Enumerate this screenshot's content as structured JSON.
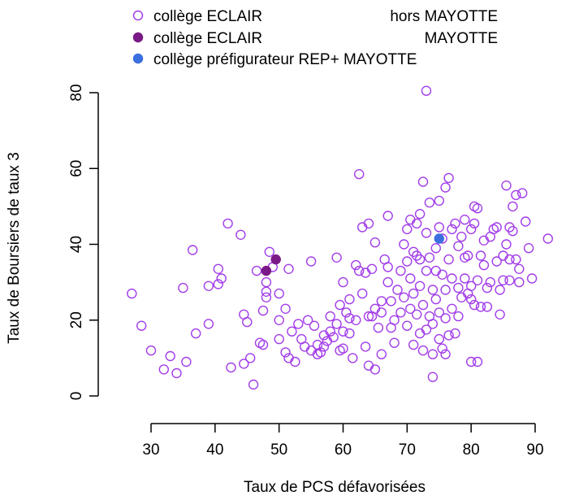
{
  "chart_data": {
    "type": "scatter",
    "title": "",
    "xlabel": "Taux de PCS défavorisées",
    "ylabel": "Taux de Boursiers de taux 3",
    "xlim": [
      25,
      95
    ],
    "ylim": [
      -2,
      84
    ],
    "x_ticks": [
      30,
      40,
      50,
      60,
      70,
      80,
      90
    ],
    "y_ticks": [
      0,
      20,
      40,
      60,
      80
    ],
    "grid": false,
    "legend_position": "top",
    "legend": [
      {
        "label": "collège ECLAIR",
        "suffix": "hors MAYOTTE",
        "marker": "open-circle",
        "color": "#a23de8"
      },
      {
        "label": "collège ECLAIR",
        "suffix": "MAYOTTE",
        "marker": "filled-circle",
        "color": "#7a1a86"
      },
      {
        "label": "collège préfigurateur REP+ MAYOTTE",
        "suffix": "",
        "marker": "filled-circle",
        "color": "#3b6fe0"
      }
    ],
    "series": [
      {
        "name": "collège ECLAIR hors MAYOTTE",
        "marker": "open-circle",
        "color": "#a23de8",
        "points": [
          [
            27,
            27
          ],
          [
            28.5,
            18.5
          ],
          [
            30,
            12
          ],
          [
            32,
            7
          ],
          [
            33,
            10.5
          ],
          [
            34,
            6
          ],
          [
            35,
            28.5
          ],
          [
            35.5,
            9
          ],
          [
            36.5,
            38.5
          ],
          [
            37,
            16.5
          ],
          [
            39,
            19
          ],
          [
            39,
            29
          ],
          [
            40.5,
            29.5
          ],
          [
            40.5,
            33.5
          ],
          [
            41,
            31
          ],
          [
            42,
            45.5
          ],
          [
            42.5,
            7.5
          ],
          [
            44,
            42.5
          ],
          [
            44.5,
            8.5
          ],
          [
            44.5,
            21.5
          ],
          [
            45,
            19.5
          ],
          [
            45.5,
            10
          ],
          [
            46,
            3
          ],
          [
            46.5,
            33
          ],
          [
            47,
            14
          ],
          [
            47.5,
            22.5
          ],
          [
            47.5,
            13.5
          ],
          [
            48,
            26
          ],
          [
            48,
            27.5
          ],
          [
            48,
            30
          ],
          [
            48.5,
            38
          ],
          [
            49,
            34
          ],
          [
            50,
            15
          ],
          [
            50,
            20
          ],
          [
            50,
            27
          ],
          [
            51,
            11.5
          ],
          [
            51,
            23
          ],
          [
            51.5,
            10
          ],
          [
            51.5,
            33.5
          ],
          [
            52,
            17
          ],
          [
            52.5,
            9
          ],
          [
            53,
            19
          ],
          [
            53.5,
            15
          ],
          [
            54,
            13
          ],
          [
            54.5,
            20
          ],
          [
            55,
            12
          ],
          [
            55,
            35.5
          ],
          [
            55.5,
            18.5
          ],
          [
            56,
            13.5
          ],
          [
            56,
            11
          ],
          [
            56.5,
            11.5
          ],
          [
            57,
            13
          ],
          [
            57,
            16
          ],
          [
            57.5,
            14.5
          ],
          [
            58,
            21
          ],
          [
            58,
            17
          ],
          [
            58.5,
            15.5
          ],
          [
            59,
            19
          ],
          [
            59,
            36.5
          ],
          [
            59.5,
            12
          ],
          [
            59.5,
            24
          ],
          [
            60,
            30
          ],
          [
            60,
            17
          ],
          [
            60,
            12.5
          ],
          [
            60.5,
            22
          ],
          [
            61,
            20.5
          ],
          [
            61,
            25.5
          ],
          [
            61,
            16.5
          ],
          [
            61.5,
            10
          ],
          [
            62,
            34.5
          ],
          [
            62,
            20
          ],
          [
            62.5,
            33
          ],
          [
            62.5,
            58.5
          ],
          [
            63,
            44.5
          ],
          [
            63,
            27
          ],
          [
            63.5,
            13
          ],
          [
            63.5,
            32.5
          ],
          [
            64,
            21
          ],
          [
            64,
            45.5
          ],
          [
            64,
            8
          ],
          [
            64.5,
            33.5
          ],
          [
            64.5,
            21
          ],
          [
            65,
            23
          ],
          [
            65,
            7
          ],
          [
            65,
            40.5
          ],
          [
            65.5,
            18
          ],
          [
            66,
            11
          ],
          [
            66,
            22
          ],
          [
            66,
            25
          ],
          [
            66.5,
            36
          ],
          [
            67,
            30
          ],
          [
            67,
            47.5
          ],
          [
            67,
            34
          ],
          [
            67.5,
            18
          ],
          [
            67.5,
            25
          ],
          [
            68,
            20
          ],
          [
            68,
            14
          ],
          [
            68.5,
            28
          ],
          [
            69,
            22
          ],
          [
            69,
            33
          ],
          [
            69.5,
            40
          ],
          [
            69.5,
            26
          ],
          [
            70,
            35.5
          ],
          [
            70,
            18.5
          ],
          [
            70,
            44
          ],
          [
            70.5,
            23
          ],
          [
            70.5,
            31
          ],
          [
            70.5,
            46.5
          ],
          [
            71,
            13.5
          ],
          [
            71,
            27
          ],
          [
            71,
            38
          ],
          [
            71.5,
            45.5
          ],
          [
            71.5,
            21.5
          ],
          [
            71.5,
            37
          ],
          [
            72,
            16.5
          ],
          [
            72,
            48
          ],
          [
            72,
            29
          ],
          [
            72,
            36
          ],
          [
            72.5,
            24
          ],
          [
            72.5,
            56.5
          ],
          [
            72.5,
            12
          ],
          [
            73,
            33
          ],
          [
            73,
            43
          ],
          [
            73,
            17.5
          ],
          [
            73,
            80.5
          ],
          [
            73.5,
            21
          ],
          [
            73.5,
            36.5
          ],
          [
            73.5,
            51
          ],
          [
            74,
            28
          ],
          [
            74,
            11
          ],
          [
            74,
            19
          ],
          [
            74,
            5
          ],
          [
            74.5,
            39
          ],
          [
            74.5,
            33
          ],
          [
            74.5,
            25.5
          ],
          [
            75,
            51.5
          ],
          [
            75,
            44.5
          ],
          [
            75,
            22
          ],
          [
            75,
            15
          ],
          [
            75.5,
            32
          ],
          [
            75.5,
            12.5
          ],
          [
            75.5,
            41.5
          ],
          [
            76,
            28
          ],
          [
            76,
            20.5
          ],
          [
            76,
            55
          ],
          [
            76,
            11
          ],
          [
            76.5,
            36
          ],
          [
            76.5,
            57.5
          ],
          [
            76.5,
            16
          ],
          [
            77,
            23
          ],
          [
            77,
            44
          ],
          [
            77,
            31
          ],
          [
            77.5,
            45.5
          ],
          [
            77.5,
            16.5
          ],
          [
            78,
            28.5
          ],
          [
            78,
            21
          ],
          [
            78,
            39.5
          ],
          [
            78.5,
            26
          ],
          [
            78.5,
            42
          ],
          [
            79,
            36.5
          ],
          [
            79,
            31
          ],
          [
            79,
            46.5
          ],
          [
            79.5,
            37
          ],
          [
            79.5,
            27
          ],
          [
            80,
            29
          ],
          [
            80,
            9
          ],
          [
            80,
            44
          ],
          [
            80,
            25.5
          ],
          [
            80.5,
            50
          ],
          [
            80.5,
            45.5
          ],
          [
            80.5,
            24
          ],
          [
            81,
            49.5
          ],
          [
            81,
            30.5
          ],
          [
            81,
            9
          ],
          [
            81.5,
            37
          ],
          [
            81.5,
            23.5
          ],
          [
            82,
            41
          ],
          [
            82,
            34.5
          ],
          [
            82.5,
            28.5
          ],
          [
            82.5,
            23.5
          ],
          [
            83,
            42
          ],
          [
            83,
            30
          ],
          [
            83.5,
            44
          ],
          [
            84,
            35.5
          ],
          [
            84,
            44.5
          ],
          [
            84.5,
            21.5
          ],
          [
            84.5,
            28
          ],
          [
            85,
            37
          ],
          [
            85,
            30.5
          ],
          [
            85.5,
            55.5
          ],
          [
            85.5,
            40
          ],
          [
            86,
            36
          ],
          [
            86,
            44.5
          ],
          [
            86,
            30.5
          ],
          [
            86.5,
            50
          ],
          [
            86.5,
            43.5
          ],
          [
            87,
            53
          ],
          [
            87,
            36
          ],
          [
            87.5,
            30
          ],
          [
            87.5,
            33.5
          ],
          [
            88,
            53.5
          ],
          [
            88.5,
            46
          ],
          [
            89,
            39
          ],
          [
            89.5,
            31
          ],
          [
            92,
            41.5
          ]
        ]
      },
      {
        "name": "collège ECLAIR MAYOTTE",
        "marker": "filled-circle",
        "color": "#7a1a86",
        "points": [
          [
            48,
            33
          ],
          [
            49.5,
            36
          ]
        ]
      },
      {
        "name": "collège préfigurateur REP+ MAYOTTE",
        "marker": "filled-circle",
        "color": "#3b6fe0",
        "points": [
          [
            75,
            41.5
          ]
        ]
      }
    ]
  }
}
